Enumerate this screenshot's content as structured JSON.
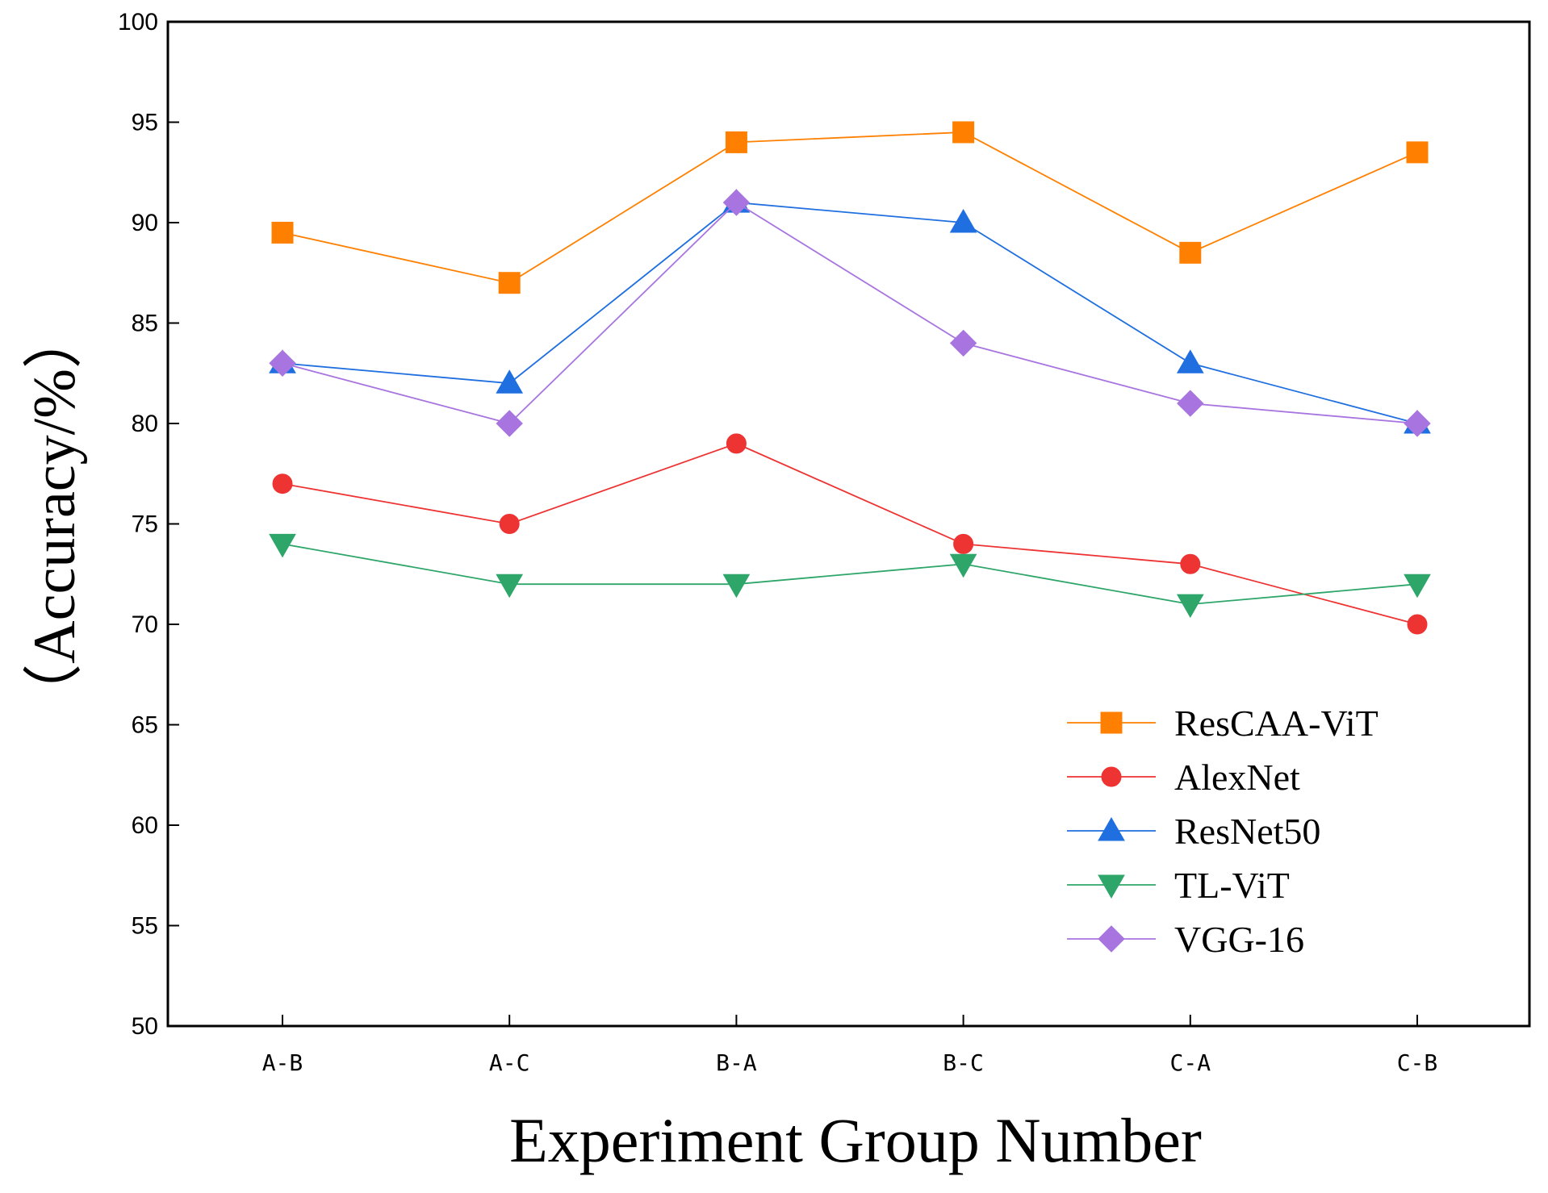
{
  "chart_data": {
    "type": "line",
    "title": "",
    "xlabel": "Experiment Group Number",
    "ylabel": "（Accuracy/%）",
    "categories": [
      "A-B",
      "A-C",
      "B-A",
      "B-C",
      "C-A",
      "C-B"
    ],
    "ylim": [
      50,
      100
    ],
    "yticks": [
      50,
      55,
      60,
      65,
      70,
      75,
      80,
      85,
      90,
      95,
      100
    ],
    "grid": false,
    "legend_position": "bottom-right",
    "series": [
      {
        "name": "ResCAA-ViT",
        "values": [
          89.5,
          87,
          94,
          94.5,
          88.5,
          93.5
        ],
        "color": "#ff8000",
        "marker": "square"
      },
      {
        "name": "AlexNet",
        "values": [
          77,
          75,
          79,
          74,
          73,
          70
        ],
        "color": "#ee3333",
        "marker": "circle"
      },
      {
        "name": "ResNet50",
        "values": [
          83,
          82,
          91,
          90,
          83,
          80
        ],
        "color": "#1f6fe0",
        "marker": "triangle-up"
      },
      {
        "name": "TL-ViT",
        "values": [
          74,
          72,
          72,
          73,
          71,
          72
        ],
        "color": "#2ea66a",
        "marker": "triangle-down"
      },
      {
        "name": "VGG-16",
        "values": [
          83,
          80,
          91,
          84,
          81,
          80
        ],
        "color": "#a875e0",
        "marker": "diamond"
      }
    ]
  }
}
